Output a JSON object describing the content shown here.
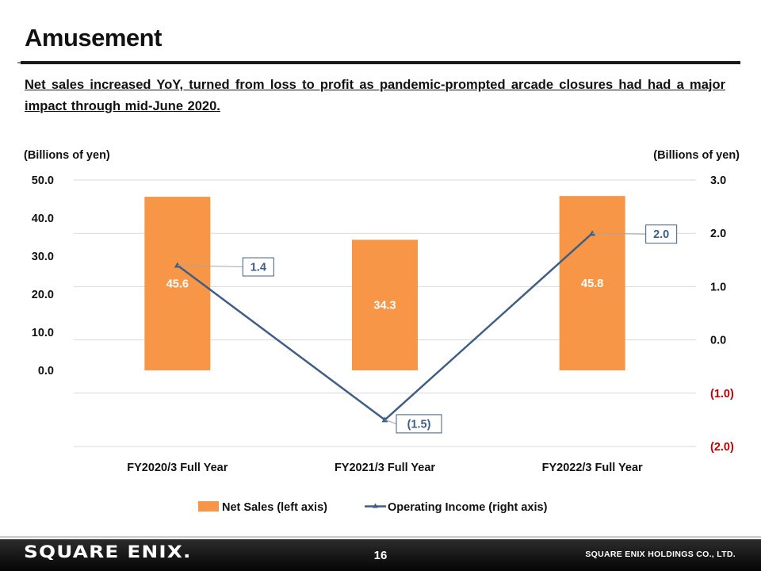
{
  "slide": {
    "title": "Amusement",
    "summary": "Net sales increased YoY, turned from loss to profit as pandemic-prompted  arcade closures had had a major impact through mid-June 2020."
  },
  "chart_data": {
    "type": "bar",
    "categories": [
      "FY2020/3 Full Year",
      "FY2021/3 Full Year",
      "FY2022/3 Full Year"
    ],
    "left_axis": {
      "label": "(Billions of yen)",
      "ticks": [
        "50.0",
        "40.0",
        "30.0",
        "20.0",
        "10.0",
        "0.0"
      ],
      "ylim": [
        -20,
        50
      ]
    },
    "right_axis": {
      "label": "(Billions of yen)",
      "ticks": [
        "3.0",
        "2.0",
        "1.0",
        "0.0",
        "(1.0)",
        "(2.0)"
      ],
      "ylim": [
        -2,
        3
      ]
    },
    "series": [
      {
        "name": "Net Sales (left axis)",
        "type": "bar",
        "axis": "left",
        "values": [
          45.6,
          34.3,
          45.8
        ],
        "labels": [
          "45.6",
          "34.3",
          "45.8"
        ],
        "color": "#F79646"
      },
      {
        "name": "Operating Income (right axis)",
        "type": "line",
        "axis": "right",
        "values": [
          1.4,
          -1.5,
          2.0
        ],
        "labels": [
          "1.4",
          "(1.5)",
          "2.0"
        ],
        "color": "#3F5E86"
      }
    ],
    "grid": true,
    "negative_tick_color": "#C00000",
    "legend": "bottom"
  },
  "footer": {
    "logo": "SQUARE ENIX.",
    "page": "16",
    "company": "SQUARE ENIX HOLDINGS CO., LTD."
  }
}
